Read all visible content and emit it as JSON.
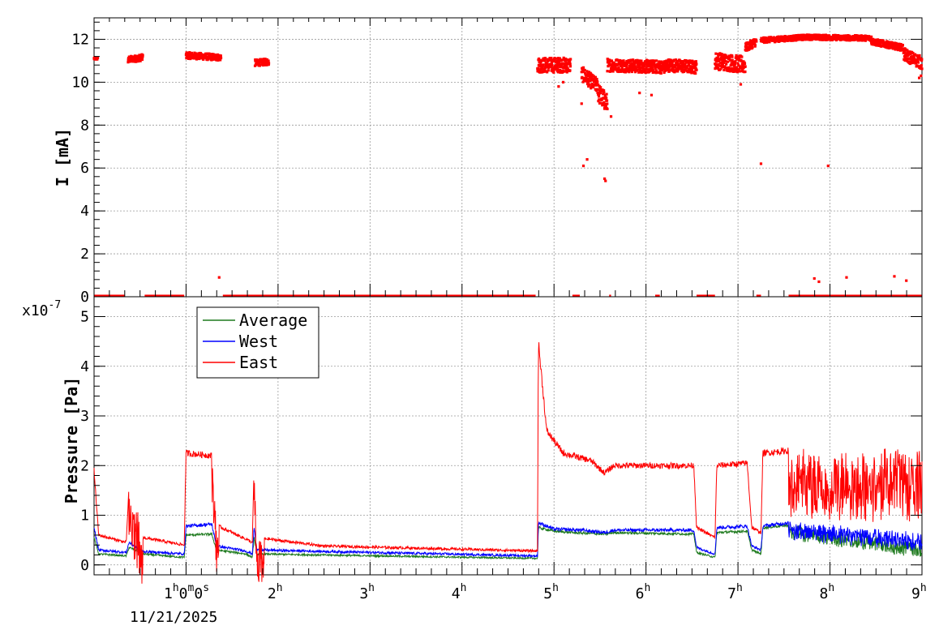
{
  "colors": {
    "average": "#1e7a1e",
    "west": "#0000ff",
    "east": "#ff0000",
    "grid": "#9a9a9a",
    "axis": "#000000"
  },
  "chart_data": [
    {
      "type": "scatter",
      "ylabel": "I [mA]",
      "ylim": [
        0,
        13
      ],
      "yticks": [
        0,
        2,
        4,
        6,
        8,
        10,
        12
      ],
      "xlim": [
        0.0,
        9.0
      ],
      "grid": true,
      "series": [
        {
          "name": "",
          "color": "#ff0000",
          "segments": [
            {
              "x": [
                0.0,
                0.04
              ],
              "y": [
                11.1,
                11.1
              ],
              "spread": 0.05
            },
            {
              "x": [
                0.37,
                0.53
              ],
              "y": [
                11.05,
                11.15
              ],
              "spread": 0.15
            },
            {
              "x": [
                1.0,
                1.38
              ],
              "y": [
                11.25,
                11.15
              ],
              "spread": 0.15
            },
            {
              "x": [
                1.75,
                1.9
              ],
              "y": [
                10.9,
                10.95
              ],
              "spread": 0.15
            },
            {
              "x": [
                4.82,
                5.18
              ],
              "y": [
                10.8,
                10.8
              ],
              "spread": 0.35
            },
            {
              "x": [
                5.3,
                5.48
              ],
              "y": [
                10.4,
                9.8
              ],
              "spread": 0.35
            },
            {
              "x": [
                5.48,
                5.58
              ],
              "y": [
                9.5,
                9.0
              ],
              "spread": 0.45
            },
            {
              "x": [
                5.58,
                6.22
              ],
              "y": [
                10.8,
                10.7
              ],
              "spread": 0.3
            },
            {
              "x": [
                6.22,
                6.55
              ],
              "y": [
                10.8,
                10.7
              ],
              "spread": 0.3
            },
            {
              "x": [
                6.75,
                7.08
              ],
              "y": [
                11.0,
                10.8
              ],
              "spread": 0.4
            },
            {
              "x": [
                7.08,
                7.2
              ],
              "y": [
                11.6,
                11.9
              ],
              "spread": 0.2
            },
            {
              "x": [
                7.25,
                7.75
              ],
              "y": [
                11.95,
                12.1
              ],
              "spread": 0.12
            },
            {
              "x": [
                7.75,
                8.45
              ],
              "y": [
                12.1,
                12.05
              ],
              "spread": 0.12
            },
            {
              "x": [
                8.45,
                8.8
              ],
              "y": [
                11.9,
                11.6
              ],
              "spread": 0.15
            },
            {
              "x": [
                8.8,
                9.0
              ],
              "y": [
                11.3,
                10.9
              ],
              "spread": 0.3
            }
          ],
          "baseline": {
            "y": 0.02,
            "ranges": [
              [
                0.0,
                0.33
              ],
              [
                0.55,
                0.98
              ],
              [
                1.4,
                4.8
              ],
              [
                5.2,
                5.28
              ],
              [
                5.6,
                5.62
              ],
              [
                6.1,
                6.15
              ],
              [
                6.55,
                6.75
              ],
              [
                7.2,
                7.25
              ],
              [
                7.55,
                9.0
              ]
            ]
          },
          "outliers": [
            [
              1.36,
              0.9
            ],
            [
              5.32,
              6.1
            ],
            [
              5.36,
              6.4
            ],
            [
              5.55,
              5.5
            ],
            [
              5.56,
              5.4
            ],
            [
              7.25,
              6.2
            ],
            [
              7.98,
              6.1
            ],
            [
              7.83,
              0.85
            ],
            [
              7.88,
              0.7
            ],
            [
              8.18,
              0.9
            ],
            [
              8.7,
              0.95
            ],
            [
              8.83,
              0.75
            ],
            [
              5.3,
              9.0
            ],
            [
              5.62,
              8.4
            ],
            [
              5.05,
              9.8
            ],
            [
              5.1,
              10.0
            ],
            [
              5.93,
              9.5
            ],
            [
              6.06,
              9.4
            ],
            [
              7.03,
              9.9
            ],
            [
              8.99,
              10.3
            ],
            [
              8.97,
              10.2
            ]
          ]
        }
      ]
    },
    {
      "type": "line",
      "ylabel": "Pressure [Pa]",
      "yexponent": "x10-7",
      "exponent_base": "x10",
      "exponent_power": "-7",
      "ylim": [
        -0.2,
        5.4
      ],
      "yticks": [
        0,
        1,
        2,
        3,
        4,
        5
      ],
      "xlim": [
        0.0,
        9.0
      ],
      "grid": true,
      "legend_position": "top-left",
      "xaxis": {
        "hour_ticks": [
          1,
          2,
          3,
          4,
          5,
          6,
          7,
          8,
          9
        ],
        "hour_unit": "h",
        "first_tick_minute": "0",
        "minute_unit": "m",
        "first_tick_second": "0",
        "second_unit": "s",
        "date": "11/21/2025"
      },
      "series": [
        {
          "name": "Average",
          "color": "#1e7a1e",
          "noise": 0.015,
          "points": [
            [
              0.0,
              0.55
            ],
            [
              0.05,
              0.22
            ],
            [
              0.35,
              0.18
            ],
            [
              0.38,
              0.35
            ],
            [
              0.48,
              0.28
            ],
            [
              0.53,
              0.22
            ],
            [
              0.98,
              0.15
            ],
            [
              1.0,
              0.6
            ],
            [
              1.28,
              0.62
            ],
            [
              1.33,
              0.3
            ],
            [
              1.65,
              0.22
            ],
            [
              1.72,
              0.15
            ],
            [
              1.74,
              0.55
            ],
            [
              1.77,
              0.22
            ],
            [
              4.82,
              0.13
            ],
            [
              4.83,
              0.75
            ],
            [
              5.0,
              0.68
            ],
            [
              5.2,
              0.65
            ],
            [
              5.55,
              0.62
            ],
            [
              5.65,
              0.65
            ],
            [
              6.52,
              0.62
            ],
            [
              6.55,
              0.25
            ],
            [
              6.75,
              0.15
            ],
            [
              6.77,
              0.65
            ],
            [
              7.1,
              0.68
            ],
            [
              7.15,
              0.3
            ],
            [
              7.25,
              0.22
            ],
            [
              7.27,
              0.75
            ],
            [
              7.55,
              0.8
            ],
            [
              9.0,
              0.45
            ]
          ]
        },
        {
          "name": "West",
          "color": "#0000ff",
          "noise": 0.02,
          "points": [
            [
              0.0,
              0.75
            ],
            [
              0.05,
              0.3
            ],
            [
              0.35,
              0.25
            ],
            [
              0.38,
              0.45
            ],
            [
              0.48,
              0.33
            ],
            [
              0.53,
              0.27
            ],
            [
              0.98,
              0.22
            ],
            [
              1.0,
              0.78
            ],
            [
              1.28,
              0.82
            ],
            [
              1.33,
              0.38
            ],
            [
              1.65,
              0.28
            ],
            [
              1.72,
              0.22
            ],
            [
              1.74,
              0.75
            ],
            [
              1.77,
              0.3
            ],
            [
              4.82,
              0.18
            ],
            [
              4.83,
              0.85
            ],
            [
              5.0,
              0.72
            ],
            [
              5.3,
              0.7
            ],
            [
              5.55,
              0.65
            ],
            [
              5.65,
              0.7
            ],
            [
              6.52,
              0.7
            ],
            [
              6.55,
              0.35
            ],
            [
              6.75,
              0.22
            ],
            [
              6.77,
              0.75
            ],
            [
              7.1,
              0.78
            ],
            [
              7.15,
              0.38
            ],
            [
              7.25,
              0.3
            ],
            [
              7.27,
              0.78
            ],
            [
              7.55,
              0.85
            ],
            [
              9.0,
              0.65
            ]
          ]
        },
        {
          "name": "East",
          "color": "#ff0000",
          "noise": 0.02,
          "points": [
            [
              0.0,
              1.9
            ],
            [
              0.05,
              0.6
            ],
            [
              0.35,
              0.45
            ],
            [
              0.38,
              1.6
            ],
            [
              0.48,
              1.0
            ],
            [
              0.53,
              0.55
            ],
            [
              0.98,
              0.4
            ],
            [
              1.0,
              2.25
            ],
            [
              1.28,
              2.2
            ],
            [
              1.33,
              0.8
            ],
            [
              1.65,
              0.52
            ],
            [
              1.72,
              0.45
            ],
            [
              1.74,
              2.0
            ],
            [
              1.77,
              0.55
            ],
            [
              2.5,
              0.38
            ],
            [
              4.82,
              0.28
            ],
            [
              4.83,
              4.5
            ],
            [
              4.92,
              2.7
            ],
            [
              5.1,
              2.25
            ],
            [
              5.4,
              2.1
            ],
            [
              5.55,
              1.85
            ],
            [
              5.65,
              2.0
            ],
            [
              6.52,
              2.0
            ],
            [
              6.55,
              0.75
            ],
            [
              6.75,
              0.55
            ],
            [
              6.77,
              2.0
            ],
            [
              7.1,
              2.05
            ],
            [
              7.15,
              0.75
            ],
            [
              7.25,
              0.65
            ],
            [
              7.27,
              2.25
            ],
            [
              7.55,
              2.3
            ],
            [
              9.0,
              2.3
            ]
          ]
        }
      ]
    }
  ]
}
